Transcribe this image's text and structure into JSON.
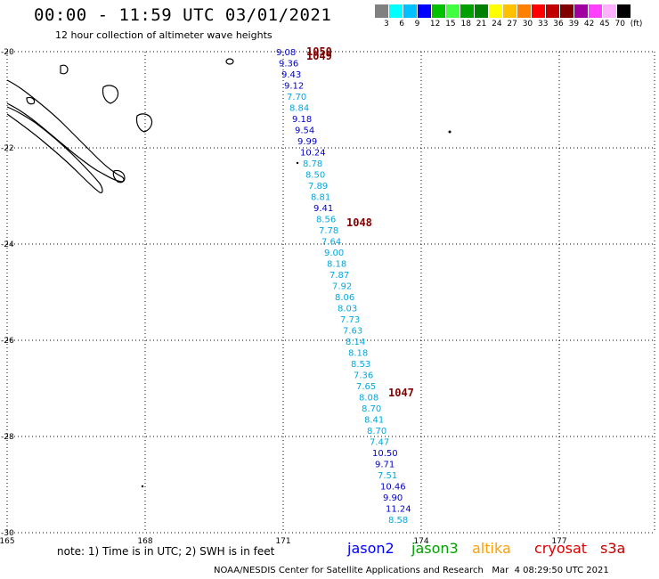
{
  "header": {
    "title": "00:00 - 11:59 UTC 03/01/2021",
    "subtitle": "12 hour collection of altimeter wave heights"
  },
  "colorbar": {
    "colors": [
      "#808080",
      "#00ffff",
      "#00c0ff",
      "#0000ff",
      "#00c000",
      "#40ff40",
      "#00a000",
      "#008000",
      "#ffff00",
      "#ffc000",
      "#ff8000",
      "#ff0000",
      "#c00000",
      "#800000",
      "#a000a0",
      "#ff40ff",
      "#ffb0ff",
      "#000000"
    ],
    "labels": [
      "3",
      "6",
      "9",
      "12",
      "15",
      "18",
      "21",
      "24",
      "27",
      "30",
      "33",
      "36",
      "39",
      "42",
      "45",
      "70",
      "(ft)"
    ]
  },
  "map": {
    "lat_labels": [
      "-20",
      "-22",
      "-24",
      "-26",
      "-28",
      "-30"
    ],
    "lon_labels": [
      "165",
      "168",
      "171",
      "174",
      "177"
    ],
    "track": [
      {
        "v": "9.08",
        "c": "#0000cc"
      },
      {
        "v": "9.36",
        "c": "#0000cc"
      },
      {
        "v": "9.43",
        "c": "#0000cc"
      },
      {
        "v": "9.12",
        "c": "#0000cc"
      },
      {
        "v": "7.70",
        "c": "#00a8e0"
      },
      {
        "v": "8.84",
        "c": "#00a8e0"
      },
      {
        "v": "9.18",
        "c": "#0000cc"
      },
      {
        "v": "9.54",
        "c": "#0000cc"
      },
      {
        "v": "9.99",
        "c": "#0000cc"
      },
      {
        "v": "10.24",
        "c": "#0000cc"
      },
      {
        "v": "8.78",
        "c": "#00a8e0"
      },
      {
        "v": "8.50",
        "c": "#00a8e0"
      },
      {
        "v": "7.89",
        "c": "#00a8e0"
      },
      {
        "v": "8.81",
        "c": "#00a8e0"
      },
      {
        "v": "9.41",
        "c": "#0000cc"
      },
      {
        "v": "8.56",
        "c": "#00a8e0"
      },
      {
        "v": "7.78",
        "c": "#00a8e0"
      },
      {
        "v": "7.64",
        "c": "#00a8e0"
      },
      {
        "v": "9.00",
        "c": "#00a8e0"
      },
      {
        "v": "8.18",
        "c": "#00a8e0"
      },
      {
        "v": "7.87",
        "c": "#00a8e0"
      },
      {
        "v": "7.92",
        "c": "#00a8e0"
      },
      {
        "v": "8.06",
        "c": "#00a8e0"
      },
      {
        "v": "8.03",
        "c": "#00a8e0"
      },
      {
        "v": "7.73",
        "c": "#00a8e0"
      },
      {
        "v": "7.63",
        "c": "#00a8e0"
      },
      {
        "v": "8.14",
        "c": "#00a8e0"
      },
      {
        "v": "8.18",
        "c": "#00a8e0"
      },
      {
        "v": "8.53",
        "c": "#00a8e0"
      },
      {
        "v": "7.36",
        "c": "#00a8e0"
      },
      {
        "v": "7.65",
        "c": "#00a8e0"
      },
      {
        "v": "8.08",
        "c": "#00a8e0"
      },
      {
        "v": "8.70",
        "c": "#00a8e0"
      },
      {
        "v": "8.41",
        "c": "#00a8e0"
      },
      {
        "v": "8.70",
        "c": "#00a8e0"
      },
      {
        "v": "7.47",
        "c": "#00a8e0"
      },
      {
        "v": "10.50",
        "c": "#0000cc"
      },
      {
        "v": "9.71",
        "c": "#0000cc"
      },
      {
        "v": "7.51",
        "c": "#00a8e0"
      },
      {
        "v": "10.46",
        "c": "#0000cc"
      },
      {
        "v": "9.90",
        "c": "#0000cc"
      },
      {
        "v": "11.24",
        "c": "#0000cc"
      },
      {
        "v": "8.58",
        "c": "#00a8e0"
      }
    ],
    "pressure_labels": [
      "1050",
      "1049",
      "1048",
      "1047"
    ]
  },
  "note": "note: 1) Time is in UTC; 2) SWH is in feet",
  "legend": [
    {
      "label": "jason2",
      "color": "#0000ff"
    },
    {
      "label": "jason3",
      "color": "#00a000"
    },
    {
      "label": "altika",
      "color": "#ffa000"
    },
    {
      "label": "cryosat",
      "color": "#e00000"
    },
    {
      "label": "s3a",
      "color": "#c00000"
    }
  ],
  "footer": "NOAA/NESDIS Center for Satellite Applications and Research   Mar  4 08:29:50 UTC 2021"
}
